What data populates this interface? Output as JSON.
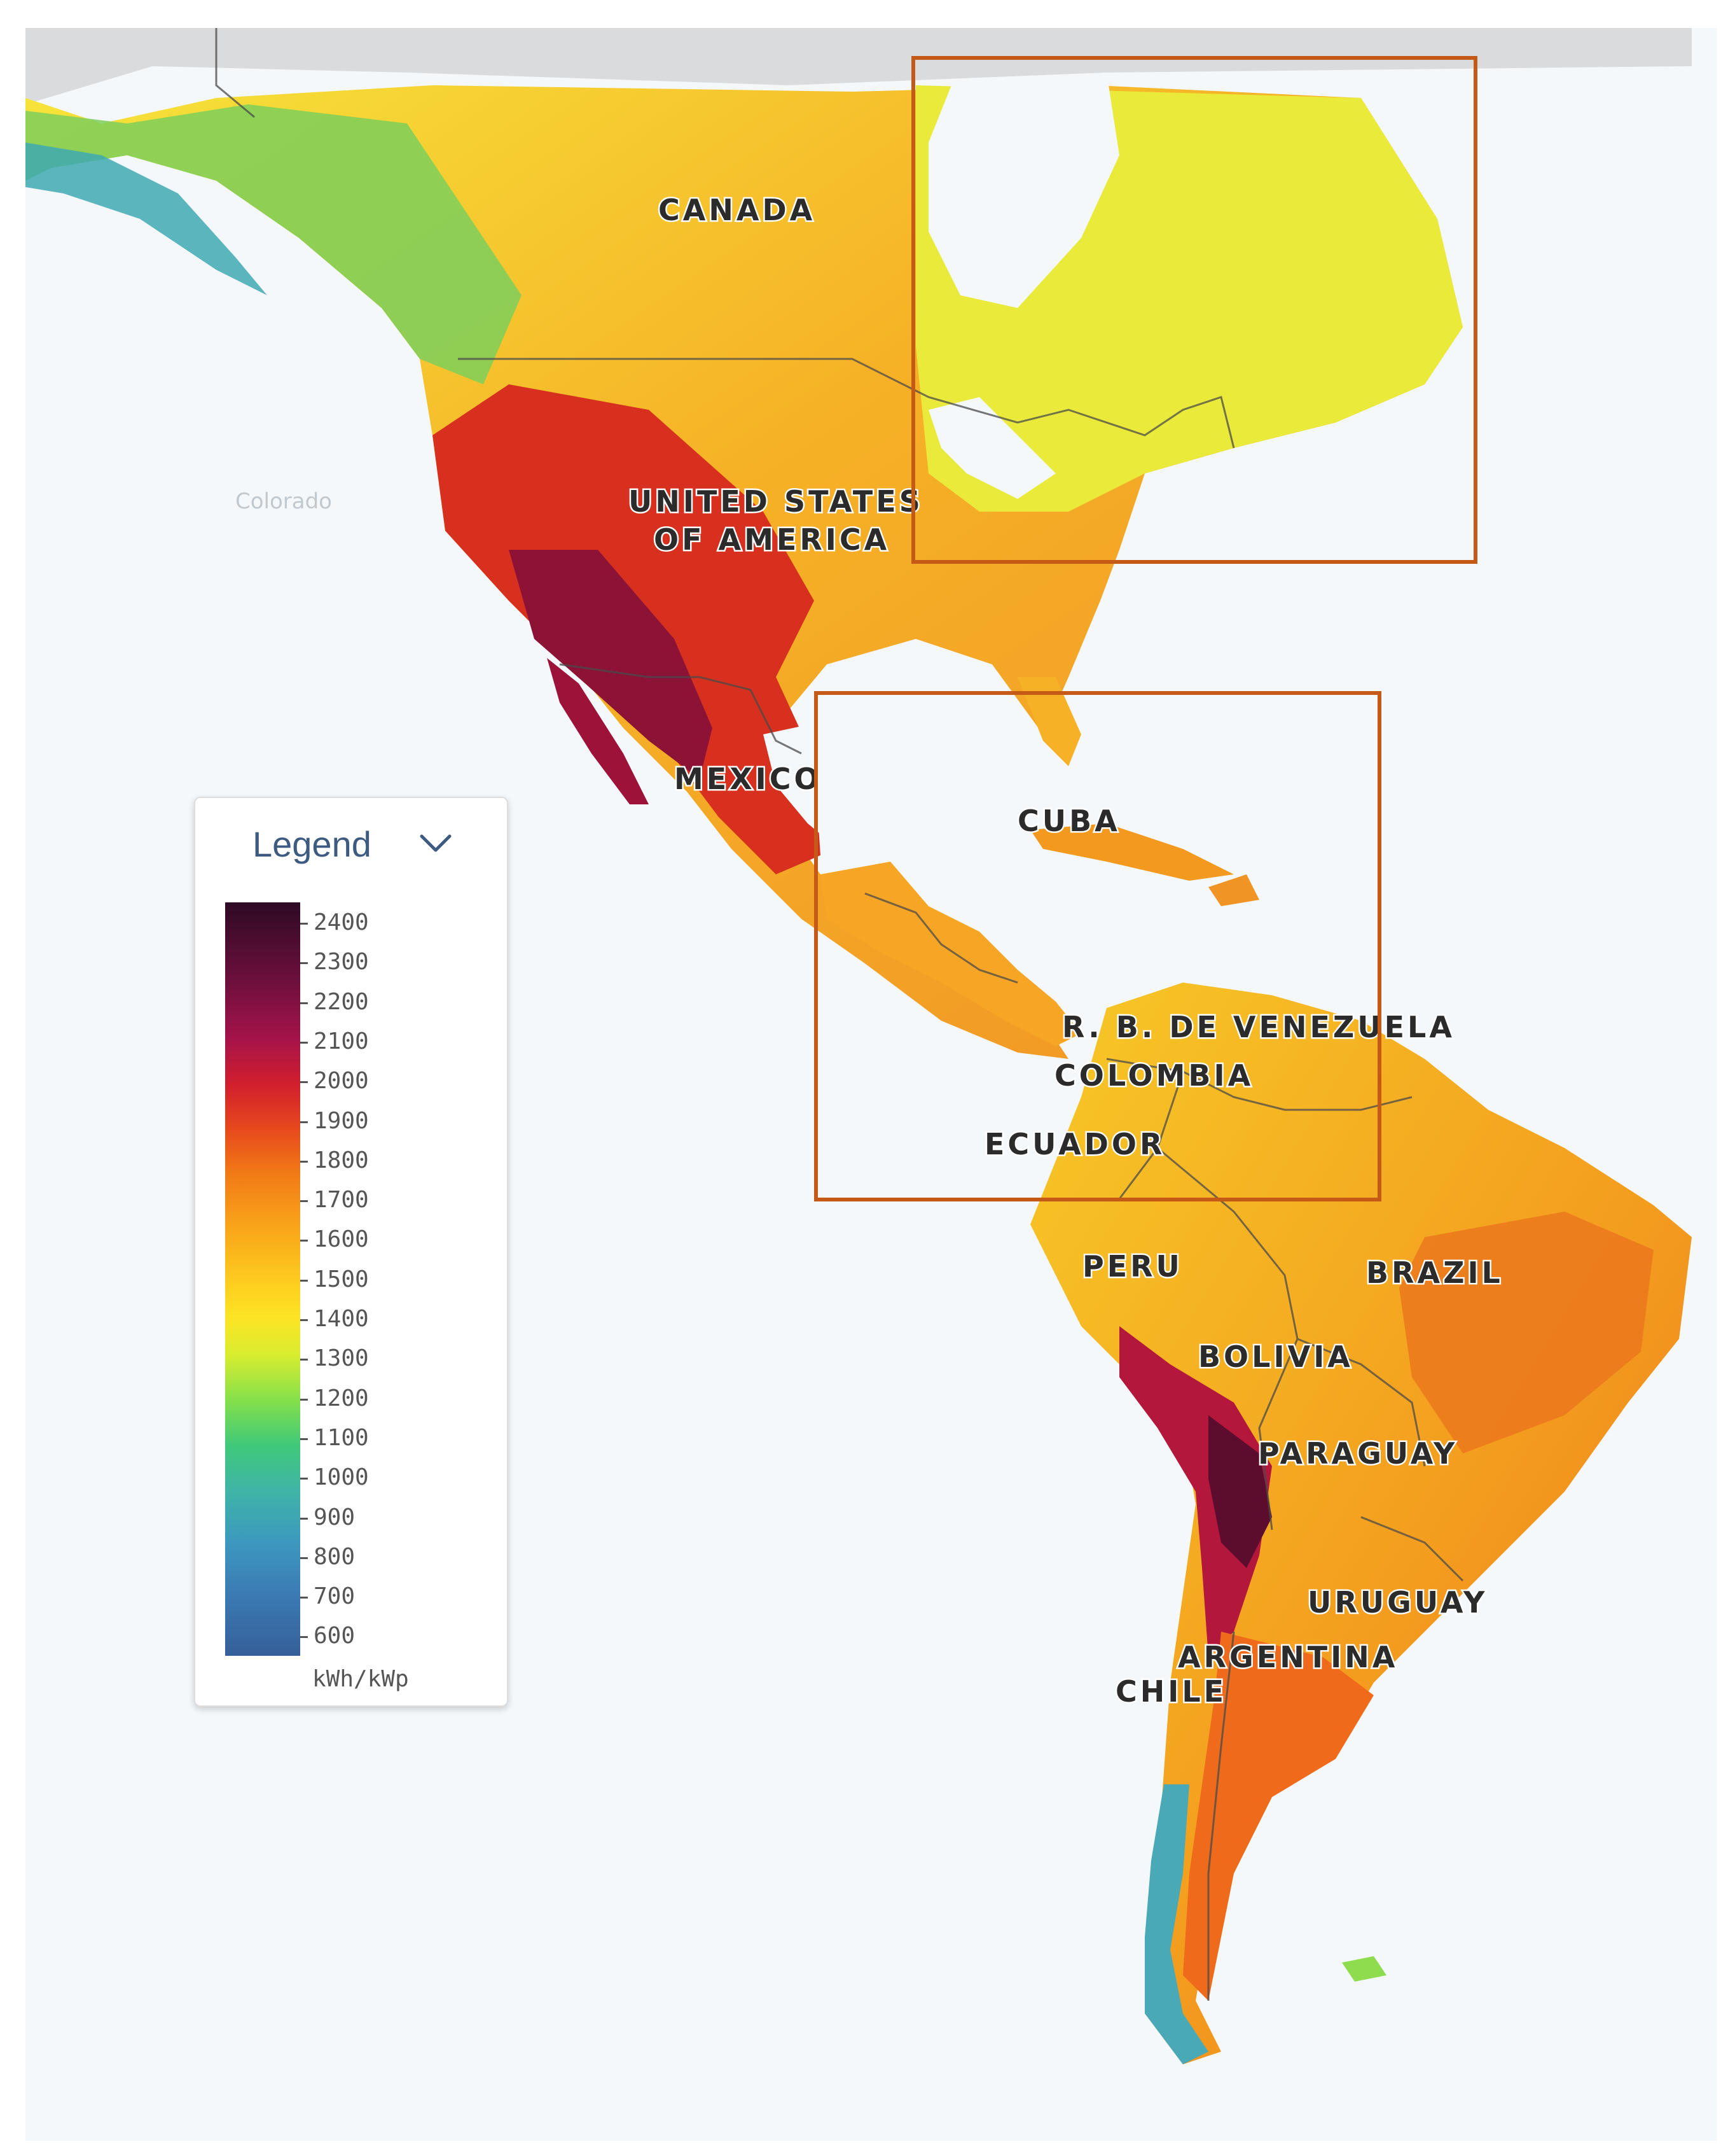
{
  "map": {
    "countries": [
      {
        "id": "canada",
        "label": "CANADA"
      },
      {
        "id": "usa-1",
        "label": "UNITED STATES"
      },
      {
        "id": "usa-2",
        "label": "OF AMERICA"
      },
      {
        "id": "mexico",
        "label": "MEXICO"
      },
      {
        "id": "cuba",
        "label": "CUBA"
      },
      {
        "id": "venezuela",
        "label": "R. B. DE VENEZUELA"
      },
      {
        "id": "colombia",
        "label": "COLOMBIA"
      },
      {
        "id": "ecuador",
        "label": "ECUADOR"
      },
      {
        "id": "peru",
        "label": "PERU"
      },
      {
        "id": "brazil",
        "label": "BRAZIL"
      },
      {
        "id": "bolivia",
        "label": "BOLIVIA"
      },
      {
        "id": "paraguay",
        "label": "PARAGUAY"
      },
      {
        "id": "uruguay",
        "label": "URUGUAY"
      },
      {
        "id": "argentina",
        "label": "ARGENTINA"
      },
      {
        "id": "chile",
        "label": "CHILE"
      }
    ],
    "faint_labels": [
      "Colorado"
    ],
    "highlight_color": "#c55a16"
  },
  "legend": {
    "title": "Legend",
    "toggle_icon": "chevron-down-icon",
    "ticks": [
      "2400",
      "2300",
      "2200",
      "2100",
      "2000",
      "1900",
      "1800",
      "1700",
      "1600",
      "1500",
      "1400",
      "1300",
      "1200",
      "1100",
      "1000",
      "900",
      "800",
      "700",
      "600"
    ],
    "unit": "kWh/kWp",
    "colors": {
      "max": "#2e0a25",
      "high": "#d01e2e",
      "mid": "#f9a41a",
      "low_mid": "#fde424",
      "low": "#40c979",
      "min": "#355f98"
    }
  }
}
